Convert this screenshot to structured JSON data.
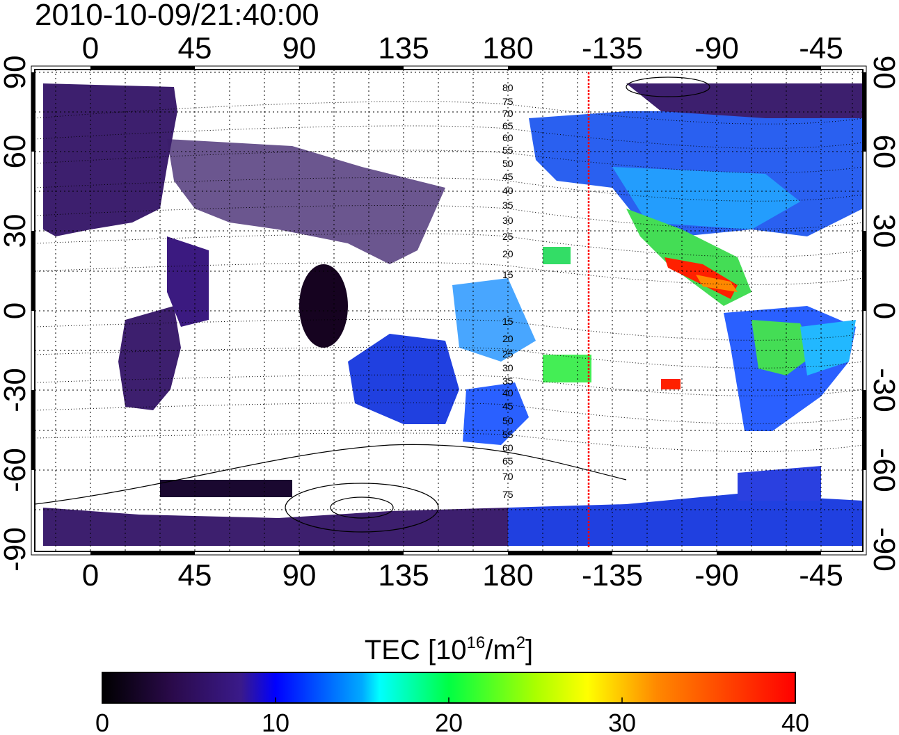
{
  "timestamp": "2010-10-09/21:40:00",
  "x_ticks": [
    "0",
    "45",
    "90",
    "135",
    "180",
    "-135",
    "-90",
    "-45"
  ],
  "y_ticks_left": [
    "90",
    "60",
    "30",
    "0",
    "-30",
    "-60",
    "-90"
  ],
  "y_ticks_right": [
    "90",
    "60",
    "30",
    "0",
    "-30",
    "-60",
    "-90"
  ],
  "contour_labels": [
    "80",
    "75",
    "70",
    "65",
    "60",
    "55",
    "50",
    "45",
    "40",
    "35",
    "30",
    "25",
    "20",
    "15",
    "15",
    "20",
    "25",
    "30",
    "35",
    "40",
    "45",
    "50",
    "55",
    "60",
    "65",
    "70",
    "75"
  ],
  "colorbar": {
    "title_main": "TEC  [10",
    "title_sup1": "16",
    "title_mid": "/m",
    "title_sup2": "2",
    "title_end": "]",
    "ticks": [
      "0",
      "10",
      "20",
      "30",
      "40"
    ],
    "min": 0,
    "max": 40
  },
  "colors": {
    "terminator_line": "#ff0000",
    "low_tec": "#3b1a6b",
    "high_tec": "#ff0000"
  }
}
